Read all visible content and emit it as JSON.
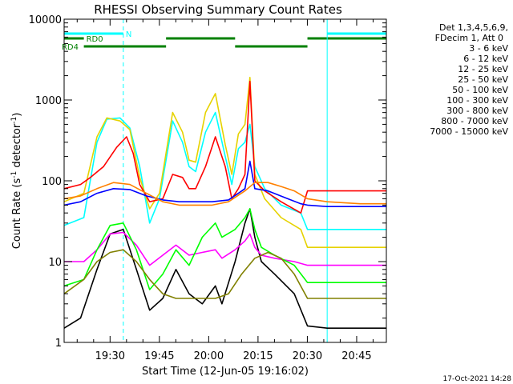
{
  "chart_data": {
    "type": "line",
    "title": "RHESSI Observing Summary Count Rates",
    "xlabel": "Start Time (12-Jun-05 19:16:02)",
    "ylabel": "Count Rate (s⁻¹ detector⁻¹)",
    "ylabel_parts": {
      "main": "Count Rate (s",
      "exp1": "-1",
      "mid": " detector",
      "exp2": "-1",
      "end": ")"
    },
    "y_scale": "log",
    "ylim": [
      1,
      10000
    ],
    "xlim_minutes": [
      0,
      98
    ],
    "x_ticks": [
      {
        "label": "19:30",
        "minute": 13.97
      },
      {
        "label": "19:45",
        "minute": 28.97
      },
      {
        "label": "20:00",
        "minute": 43.97
      },
      {
        "label": "20:15",
        "minute": 58.97
      },
      {
        "label": "20:30",
        "minute": 73.97
      },
      {
        "label": "20:45",
        "minute": 88.97
      }
    ],
    "y_ticks": [
      {
        "label": "1",
        "value": 1
      },
      {
        "label": "10",
        "value": 10
      },
      {
        "label": "100",
        "value": 100
      },
      {
        "label": "1000",
        "value": 1000
      },
      {
        "label": "10000",
        "value": 10000
      }
    ],
    "legend_header": [
      "Det 1,3,4,5,6,9,",
      "FDecim 1, Att 0"
    ],
    "series": [
      {
        "name": "3 - 6 keV",
        "color": "#000000",
        "points": [
          [
            0,
            1.5
          ],
          [
            5,
            2
          ],
          [
            10,
            8
          ],
          [
            14,
            22
          ],
          [
            18,
            25
          ],
          [
            22,
            8
          ],
          [
            26,
            2.5
          ],
          [
            30,
            3.5
          ],
          [
            34,
            8
          ],
          [
            38,
            4
          ],
          [
            42,
            3
          ],
          [
            46,
            5
          ],
          [
            48,
            3
          ],
          [
            52,
            10
          ],
          [
            55,
            30
          ],
          [
            56.5,
            45
          ],
          [
            58,
            20
          ],
          [
            60,
            10
          ],
          [
            64,
            7
          ],
          [
            70,
            4
          ],
          [
            74,
            1.6
          ],
          [
            80,
            1.5
          ],
          [
            90,
            1.5
          ],
          [
            98,
            1.5
          ]
        ]
      },
      {
        "name": "6 - 12 keV",
        "color": "#ff00ff",
        "points": [
          [
            0,
            10
          ],
          [
            6,
            10
          ],
          [
            10,
            14
          ],
          [
            14,
            22
          ],
          [
            18,
            23
          ],
          [
            22,
            16
          ],
          [
            26,
            9
          ],
          [
            30,
            12
          ],
          [
            34,
            16
          ],
          [
            38,
            12
          ],
          [
            42,
            13
          ],
          [
            46,
            14
          ],
          [
            48,
            11
          ],
          [
            52,
            14
          ],
          [
            55,
            18
          ],
          [
            56.5,
            22
          ],
          [
            58,
            15
          ],
          [
            60,
            12
          ],
          [
            64,
            11
          ],
          [
            70,
            10
          ],
          [
            74,
            9
          ],
          [
            80,
            9
          ],
          [
            90,
            9
          ],
          [
            98,
            9
          ]
        ]
      },
      {
        "name": "12 - 25 keV",
        "color": "#00ff00",
        "points": [
          [
            0,
            5
          ],
          [
            6,
            6
          ],
          [
            10,
            14
          ],
          [
            14,
            28
          ],
          [
            18,
            30
          ],
          [
            22,
            14
          ],
          [
            26,
            4.5
          ],
          [
            30,
            7
          ],
          [
            34,
            14
          ],
          [
            38,
            9
          ],
          [
            42,
            20
          ],
          [
            46,
            30
          ],
          [
            48,
            20
          ],
          [
            52,
            25
          ],
          [
            55,
            35
          ],
          [
            56.5,
            45
          ],
          [
            58,
            25
          ],
          [
            60,
            15
          ],
          [
            64,
            12
          ],
          [
            70,
            9
          ],
          [
            74,
            5.5
          ],
          [
            80,
            5.5
          ],
          [
            90,
            5.5
          ],
          [
            98,
            5.5
          ]
        ]
      },
      {
        "name": "25 - 50 keV",
        "color": "#00ffff",
        "points": [
          [
            0,
            28
          ],
          [
            6,
            35
          ],
          [
            10,
            300
          ],
          [
            13,
            580
          ],
          [
            17,
            600
          ],
          [
            20,
            450
          ],
          [
            23,
            150
          ],
          [
            26,
            30
          ],
          [
            29,
            60
          ],
          [
            33,
            550
          ],
          [
            36,
            300
          ],
          [
            38,
            150
          ],
          [
            40,
            130
          ],
          [
            43,
            400
          ],
          [
            46,
            700
          ],
          [
            49,
            200
          ],
          [
            51,
            90
          ],
          [
            53,
            250
          ],
          [
            55,
            300
          ],
          [
            56.5,
            500
          ],
          [
            58,
            150
          ],
          [
            61,
            80
          ],
          [
            66,
            50
          ],
          [
            72,
            40
          ],
          [
            74,
            25
          ],
          [
            80,
            25
          ],
          [
            90,
            25
          ],
          [
            98,
            25
          ]
        ]
      },
      {
        "name": "50 - 100 keV",
        "color": "#e6d200",
        "points": [
          [
            0,
            55
          ],
          [
            6,
            70
          ],
          [
            10,
            350
          ],
          [
            13,
            600
          ],
          [
            17,
            550
          ],
          [
            20,
            430
          ],
          [
            23,
            110
          ],
          [
            26,
            45
          ],
          [
            29,
            70
          ],
          [
            33,
            700
          ],
          [
            36,
            400
          ],
          [
            38,
            180
          ],
          [
            40,
            170
          ],
          [
            43,
            700
          ],
          [
            46,
            1200
          ],
          [
            49,
            280
          ],
          [
            51,
            120
          ],
          [
            53,
            380
          ],
          [
            55,
            500
          ],
          [
            56.5,
            1900
          ],
          [
            58,
            120
          ],
          [
            61,
            60
          ],
          [
            66,
            35
          ],
          [
            72,
            25
          ],
          [
            74,
            15
          ],
          [
            80,
            15
          ],
          [
            90,
            15
          ],
          [
            98,
            15
          ]
        ]
      },
      {
        "name": "100 - 300 keV",
        "color": "#ff0000",
        "points": [
          [
            0,
            80
          ],
          [
            5,
            90
          ],
          [
            8,
            110
          ],
          [
            12,
            150
          ],
          [
            16,
            260
          ],
          [
            19,
            350
          ],
          [
            21,
            220
          ],
          [
            23,
            90
          ],
          [
            26,
            55
          ],
          [
            30,
            60
          ],
          [
            33,
            120
          ],
          [
            36,
            110
          ],
          [
            38,
            80
          ],
          [
            40,
            80
          ],
          [
            43,
            150
          ],
          [
            46,
            350
          ],
          [
            49,
            150
          ],
          [
            51,
            60
          ],
          [
            53,
            80
          ],
          [
            55,
            120
          ],
          [
            56.5,
            1700
          ],
          [
            58,
            100
          ],
          [
            61,
            75
          ],
          [
            66,
            55
          ],
          [
            72,
            40
          ],
          [
            74,
            75
          ],
          [
            80,
            75
          ],
          [
            90,
            75
          ],
          [
            98,
            75
          ]
        ]
      },
      {
        "name": "300 - 800 keV",
        "color": "#0000ff",
        "points": [
          [
            0,
            50
          ],
          [
            5,
            55
          ],
          [
            10,
            70
          ],
          [
            15,
            80
          ],
          [
            20,
            78
          ],
          [
            25,
            65
          ],
          [
            30,
            58
          ],
          [
            35,
            55
          ],
          [
            40,
            55
          ],
          [
            45,
            55
          ],
          [
            50,
            58
          ],
          [
            53,
            70
          ],
          [
            55,
            80
          ],
          [
            56.5,
            175
          ],
          [
            58,
            80
          ],
          [
            62,
            75
          ],
          [
            68,
            60
          ],
          [
            72,
            52
          ],
          [
            74,
            50
          ],
          [
            80,
            48
          ],
          [
            90,
            48
          ],
          [
            98,
            48
          ]
        ]
      },
      {
        "name": "800 - 7000 keV",
        "color": "#ff8000",
        "points": [
          [
            0,
            60
          ],
          [
            5,
            65
          ],
          [
            10,
            80
          ],
          [
            15,
            95
          ],
          [
            20,
            90
          ],
          [
            25,
            70
          ],
          [
            30,
            55
          ],
          [
            35,
            50
          ],
          [
            40,
            50
          ],
          [
            45,
            50
          ],
          [
            50,
            55
          ],
          [
            55,
            75
          ],
          [
            58,
            95
          ],
          [
            62,
            95
          ],
          [
            66,
            85
          ],
          [
            70,
            75
          ],
          [
            74,
            60
          ],
          [
            80,
            55
          ],
          [
            90,
            52
          ],
          [
            98,
            52
          ]
        ]
      },
      {
        "name": "7000 - 15000 keV",
        "color": "#808000",
        "points": [
          [
            0,
            4
          ],
          [
            6,
            6
          ],
          [
            10,
            10
          ],
          [
            14,
            13
          ],
          [
            18,
            14
          ],
          [
            22,
            10
          ],
          [
            26,
            6
          ],
          [
            30,
            4
          ],
          [
            34,
            3.5
          ],
          [
            38,
            3.5
          ],
          [
            42,
            3.5
          ],
          [
            46,
            3.5
          ],
          [
            50,
            4
          ],
          [
            54,
            7
          ],
          [
            58,
            11
          ],
          [
            62,
            13
          ],
          [
            66,
            11
          ],
          [
            70,
            7
          ],
          [
            74,
            3.5
          ],
          [
            80,
            3.5
          ],
          [
            90,
            3.5
          ],
          [
            98,
            3.5
          ]
        ]
      }
    ],
    "flag_bars": [
      {
        "label": "N",
        "color": "#00ffff",
        "segments": [
          [
            0,
            18
          ],
          [
            80,
            98
          ]
        ],
        "label_at": "right-of-first"
      },
      {
        "label": "RD0",
        "color": "#008000",
        "segments": [
          [
            0,
            6
          ],
          [
            31,
            52
          ],
          [
            74,
            98
          ]
        ],
        "label_at": "right-of-first"
      },
      {
        "label": "RD4",
        "color": "#008000",
        "segments": [
          [
            6,
            31
          ],
          [
            52,
            74
          ]
        ],
        "label_at": "left-of-first"
      }
    ],
    "vertical_markers": [
      {
        "minute": 0,
        "color": "#00ffff",
        "style": "solid"
      },
      {
        "minute": 18,
        "color": "#00ffff",
        "style": "dashed"
      },
      {
        "minute": 80,
        "color": "#00ffff",
        "style": "solid"
      },
      {
        "minute": 98,
        "color": "#00ffff",
        "style": "dashed"
      }
    ]
  },
  "footer": {
    "timestamp": "17-Oct-2021 14:28"
  }
}
